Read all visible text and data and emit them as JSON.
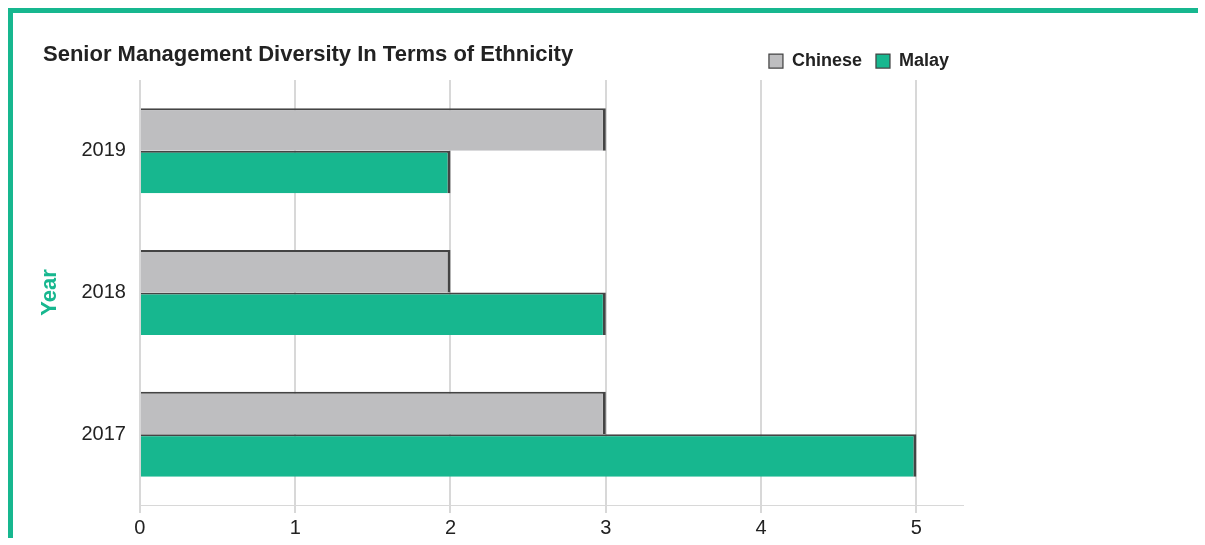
{
  "chart_data": {
    "type": "bar",
    "orientation": "horizontal",
    "title": "Senior Management Diversity In Terms of Ethnicity",
    "ylabel": "Year",
    "categories": [
      "2019",
      "2018",
      "2017"
    ],
    "series": [
      {
        "name": "Chinese",
        "color": "#bebec0",
        "values": [
          3,
          2,
          3
        ]
      },
      {
        "name": "Malay",
        "color": "#17b78f",
        "values": [
          2,
          3,
          5
        ]
      }
    ],
    "xlim": [
      0,
      5.3
    ],
    "xticks": [
      0,
      1,
      2,
      3,
      4,
      5
    ],
    "grid": "x",
    "legend": "top right"
  }
}
